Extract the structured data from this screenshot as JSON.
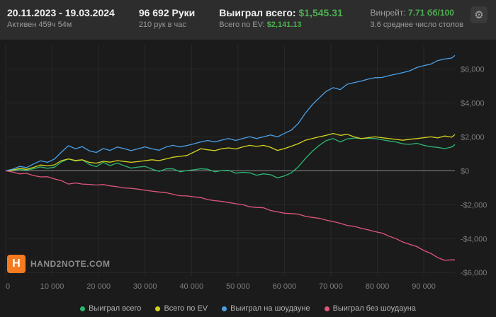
{
  "header": {
    "date_range": "20.11.2023 - 19.03.2024",
    "active_time": "Активен 459ч 54м",
    "hands_total": "96 692 Руки",
    "hands_per_hour": "210 рук в час",
    "won_total_label": "Выиграл всего:",
    "won_total_value": "$1,545.31",
    "ev_total_label": "Всего по EV:",
    "ev_total_value": "$2,141.13",
    "winrate_label": "Винрейт:",
    "winrate_value": "7.71 бб/100",
    "avg_tables": "3.6 среднее число столов",
    "gear_icon": "⚙"
  },
  "branding": {
    "logo_letter": "H",
    "logo_text": "HAND2NOTE.COM"
  },
  "colors": {
    "money_green": "#4caf50",
    "header_bg": "#2d2d2d",
    "chart_bg": "#1b1b1b",
    "logo_orange": "#f47b20"
  },
  "chart_data": {
    "type": "line",
    "title": "",
    "xlabel": "",
    "ylabel": "",
    "grid": true,
    "legend_position": "bottom",
    "x_range": [
      0,
      96692
    ],
    "y_range": [
      -6200,
      7400
    ],
    "grid_color": "#292929",
    "zero_line_color": "#8f8f8f",
    "axis_text_color": "#7d7d7d",
    "x_ticks": [
      {
        "value": 0,
        "label": "0"
      },
      {
        "value": 10000,
        "label": "10 000"
      },
      {
        "value": 20000,
        "label": "20 000"
      },
      {
        "value": 30000,
        "label": "30 000"
      },
      {
        "value": 40000,
        "label": "40 000"
      },
      {
        "value": 50000,
        "label": "50 000"
      },
      {
        "value": 60000,
        "label": "60 000"
      },
      {
        "value": 70000,
        "label": "70 000"
      },
      {
        "value": 80000,
        "label": "80 000"
      },
      {
        "value": 90000,
        "label": "90 000"
      }
    ],
    "y_ticks": [
      {
        "value": 6000,
        "label": "$6,000"
      },
      {
        "value": 4000,
        "label": "$4,000"
      },
      {
        "value": 2000,
        "label": "$2,000"
      },
      {
        "value": 0,
        "label": "$0"
      },
      {
        "value": -2000,
        "label": "-$2,000"
      },
      {
        "value": -4000,
        "label": "-$4,000"
      },
      {
        "value": -6000,
        "label": "-$6,000"
      }
    ],
    "x": [
      0,
      1500,
      3000,
      4500,
      6000,
      7500,
      9000,
      10500,
      12000,
      13500,
      15000,
      16500,
      18000,
      19500,
      21000,
      22500,
      24000,
      25500,
      27000,
      28500,
      30000,
      31500,
      33000,
      34500,
      36000,
      37500,
      39000,
      40500,
      42000,
      43500,
      45000,
      46500,
      48000,
      49500,
      51000,
      52500,
      54000,
      55500,
      57000,
      58500,
      60000,
      61500,
      63000,
      64500,
      66000,
      67500,
      69000,
      70500,
      72000,
      73500,
      75000,
      76500,
      78000,
      79500,
      81000,
      82500,
      84000,
      85500,
      87000,
      88500,
      90000,
      91500,
      93000,
      94500,
      96000,
      96692
    ],
    "series": [
      {
        "name": "Выиграл всего",
        "color": "#2bb673",
        "final_value": 1545.31,
        "values": [
          0,
          30,
          80,
          40,
          120,
          230,
          150,
          210,
          520,
          700,
          580,
          640,
          380,
          240,
          500,
          310,
          460,
          300,
          160,
          220,
          260,
          100,
          -40,
          110,
          120,
          -60,
          10,
          60,
          120,
          90,
          -60,
          10,
          30,
          -140,
          -90,
          -120,
          -260,
          -180,
          -230,
          -420,
          -300,
          -120,
          240,
          720,
          1150,
          1500,
          1780,
          1900,
          1700,
          1880,
          1930,
          1900,
          1920,
          1900,
          1830,
          1760,
          1700,
          1590,
          1560,
          1620,
          1500,
          1420,
          1380,
          1310,
          1400,
          1545
        ]
      },
      {
        "name": "Всего по EV",
        "color": "#d4d41f",
        "final_value": 2141.13,
        "values": [
          0,
          50,
          140,
          90,
          200,
          340,
          290,
          350,
          600,
          700,
          610,
          650,
          500,
          450,
          560,
          510,
          600,
          550,
          500,
          540,
          600,
          650,
          600,
          700,
          800,
          850,
          900,
          1100,
          1300,
          1240,
          1190,
          1300,
          1350,
          1290,
          1400,
          1500,
          1440,
          1500,
          1390,
          1200,
          1310,
          1450,
          1600,
          1800,
          1900,
          2000,
          2090,
          2200,
          2090,
          2150,
          2000,
          1900,
          1950,
          2000,
          1950,
          1900,
          1850,
          1800,
          1860,
          1900,
          1950,
          2000,
          1940,
          2050,
          1980,
          2141
        ]
      },
      {
        "name": "Выиграл на шоудауне",
        "color": "#4aa0e8",
        "final_value": 6800,
        "values": [
          0,
          100,
          260,
          190,
          400,
          590,
          500,
          690,
          1100,
          1480,
          1300,
          1420,
          1180,
          1080,
          1310,
          1200,
          1400,
          1310,
          1190,
          1300,
          1410,
          1300,
          1210,
          1400,
          1500,
          1410,
          1490,
          1590,
          1700,
          1790,
          1700,
          1810,
          1900,
          1790,
          1900,
          2010,
          1900,
          2000,
          2110,
          2000,
          2200,
          2400,
          2800,
          3400,
          3900,
          4300,
          4690,
          4900,
          4790,
          5100,
          5200,
          5290,
          5400,
          5490,
          5500,
          5610,
          5700,
          5790,
          5900,
          6090,
          6200,
          6290,
          6500,
          6590,
          6650,
          6800
        ]
      },
      {
        "name": "Выиграл без шоудауна",
        "color": "#e0567c",
        "final_value": -5255,
        "values": [
          0,
          -70,
          -180,
          -150,
          -280,
          -360,
          -350,
          -480,
          -580,
          -780,
          -720,
          -780,
          -800,
          -840,
          -810,
          -890,
          -940,
          -1010,
          -1030,
          -1080,
          -1150,
          -1200,
          -1250,
          -1290,
          -1380,
          -1470,
          -1480,
          -1530,
          -1580,
          -1700,
          -1760,
          -1800,
          -1870,
          -1940,
          -1990,
          -2120,
          -2160,
          -2180,
          -2340,
          -2420,
          -2500,
          -2520,
          -2560,
          -2680,
          -2750,
          -2800,
          -2910,
          -3000,
          -3090,
          -3220,
          -3270,
          -3390,
          -3480,
          -3590,
          -3670,
          -3850,
          -4000,
          -4200,
          -4340,
          -4470,
          -4700,
          -4870,
          -5120,
          -5280,
          -5250,
          -5255
        ]
      }
    ]
  }
}
